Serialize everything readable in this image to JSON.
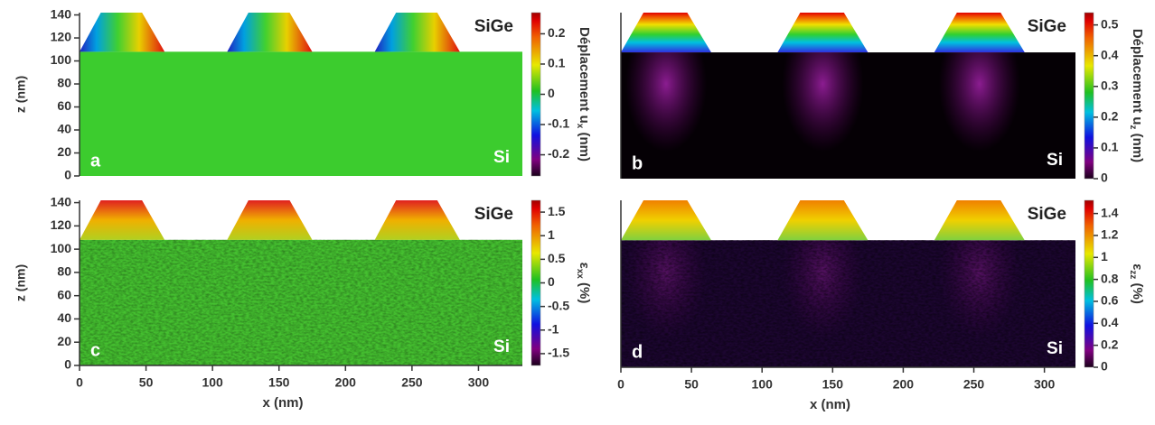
{
  "chart_data": [
    {
      "type": "heatmap",
      "panel_label": "a",
      "annotations": [
        "SiGe",
        "Si"
      ],
      "ylabel": "z (nm)",
      "xlim": [
        0,
        333
      ],
      "ylim": [
        0,
        142
      ],
      "yticks": [
        0,
        20,
        40,
        60,
        80,
        100,
        120,
        140
      ],
      "colorbar": {
        "label": "Déplacement u",
        "sub": "x",
        "unit": " (nm)",
        "lim": [
          -0.27,
          0.27
        ],
        "ticks": [
          -0.2,
          -0.1,
          0,
          0.1,
          0.2
        ]
      }
    },
    {
      "type": "heatmap",
      "panel_label": "b",
      "annotations": [
        "SiGe",
        "Si"
      ],
      "xlim": [
        0,
        322
      ],
      "ylim": [
        0,
        142
      ],
      "colorbar": {
        "label": "Déplacement u",
        "sub": "z",
        "unit": " (nm)",
        "lim": [
          0,
          0.54
        ],
        "ticks": [
          0,
          0.1,
          0.2,
          0.3,
          0.4,
          0.5
        ]
      }
    },
    {
      "type": "heatmap",
      "panel_label": "c",
      "annotations": [
        "SiGe",
        "Si"
      ],
      "ylabel": "z (nm)",
      "xlabel": "x (nm)",
      "xlim": [
        0,
        333
      ],
      "xticks": [
        0,
        50,
        100,
        150,
        200,
        250,
        300
      ],
      "ylim": [
        0,
        142
      ],
      "yticks": [
        0,
        20,
        40,
        60,
        80,
        100,
        120,
        140
      ],
      "colorbar": {
        "label": "ε",
        "sub": "xx",
        "unit": " (%)",
        "lim": [
          -1.75,
          1.75
        ],
        "ticks": [
          -1.5,
          -1,
          -0.5,
          0,
          0.5,
          1,
          1.5
        ]
      }
    },
    {
      "type": "heatmap",
      "panel_label": "d",
      "annotations": [
        "SiGe",
        "Si"
      ],
      "xlabel": "x (nm)",
      "xlim": [
        0,
        322
      ],
      "xticks": [
        0,
        50,
        100,
        150,
        200,
        250,
        300
      ],
      "ylim": [
        0,
        142
      ],
      "colorbar": {
        "label": "ε",
        "sub": "zz",
        "unit": " (%)",
        "lim": [
          0,
          1.52
        ],
        "ticks": [
          0,
          0.2,
          0.4,
          0.6,
          0.8,
          1,
          1.2,
          1.4
        ]
      }
    }
  ]
}
